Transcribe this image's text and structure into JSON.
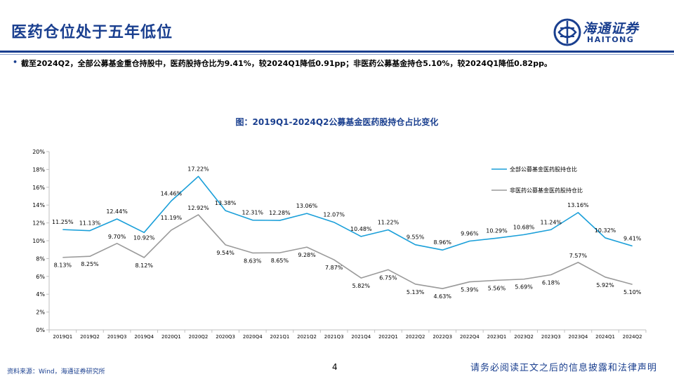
{
  "header": {
    "title": "医药仓位处于五年低位",
    "logo_cn": "海通证券",
    "logo_en": "HAITONG"
  },
  "summary": {
    "bullet_mark": "•",
    "text": "截至2024Q2，全部公募基金重仓持股中，医药股持仓比为9.41%，较2024Q1降低0.91pp；非医药公募基金持仓5.10%，较2024Q1降低0.82pp。"
  },
  "chart_data": {
    "type": "line",
    "title": "图：2019Q1-2024Q2公募基金医药股持仓占比变化",
    "categories": [
      "2019Q1",
      "2019Q2",
      "2019Q3",
      "2019Q4",
      "2020Q1",
      "2020Q2",
      "2020Q3",
      "2020Q4",
      "2021Q1",
      "2021Q2",
      "2021Q3",
      "2021Q4",
      "2022Q1",
      "2022Q2",
      "2022Q3",
      "2022Q4",
      "2023Q1",
      "2023Q2",
      "2023Q3",
      "2023Q4",
      "2024Q1",
      "2024Q2"
    ],
    "ylim": [
      0,
      20
    ],
    "yticks": [
      "0%",
      "2%",
      "4%",
      "6%",
      "8%",
      "10%",
      "12%",
      "14%",
      "16%",
      "18%",
      "20%"
    ],
    "series": [
      {
        "name": "全部公募基金医药股持仓比",
        "color": "#1a9fd9",
        "values": [
          11.25,
          11.13,
          12.44,
          10.92,
          14.46,
          17.22,
          13.38,
          12.31,
          12.28,
          13.06,
          12.07,
          10.48,
          11.22,
          9.55,
          8.96,
          9.96,
          10.29,
          10.68,
          11.24,
          13.16,
          10.32,
          9.41
        ],
        "labels": [
          "11.25%",
          "11.13%",
          "12.44%",
          "10.92%",
          "14.46%",
          "17.22%",
          "13.38%",
          "12.31%",
          "12.28%",
          "13.06%",
          "12.07%",
          "10.48%",
          "11.22%",
          "9.55%",
          "8.96%",
          "9.96%",
          "10.29%",
          "10.68%",
          "11.24%",
          "13.16%",
          "10.32%",
          "9.41%"
        ]
      },
      {
        "name": "非医药公募基金医药股持仓比",
        "color": "#9a9a9a",
        "values": [
          8.13,
          8.25,
          9.7,
          8.12,
          11.19,
          12.92,
          9.54,
          8.63,
          8.65,
          9.28,
          7.87,
          5.82,
          6.75,
          5.13,
          4.63,
          5.39,
          5.56,
          5.69,
          6.18,
          7.57,
          5.92,
          5.1
        ],
        "labels": [
          "8.13%",
          "8.25%",
          "9.70%",
          "8.12%",
          "11.19%",
          "12.92%",
          "9.54%",
          "8.63%",
          "8.65%",
          "9.28%",
          "7.87%",
          "5.82%",
          "6.75%",
          "5.13%",
          "4.63%",
          "5.39%",
          "5.56%",
          "5.69%",
          "6.18%",
          "7.57%",
          "5.92%",
          "5.10%"
        ]
      }
    ],
    "legend_position": "top-right",
    "grid": false
  },
  "footer": {
    "source": "资料来源：Wind，海通证券研究所",
    "page": "4",
    "disclaimer": "请务必阅读正文之后的信息披露和法律声明"
  }
}
